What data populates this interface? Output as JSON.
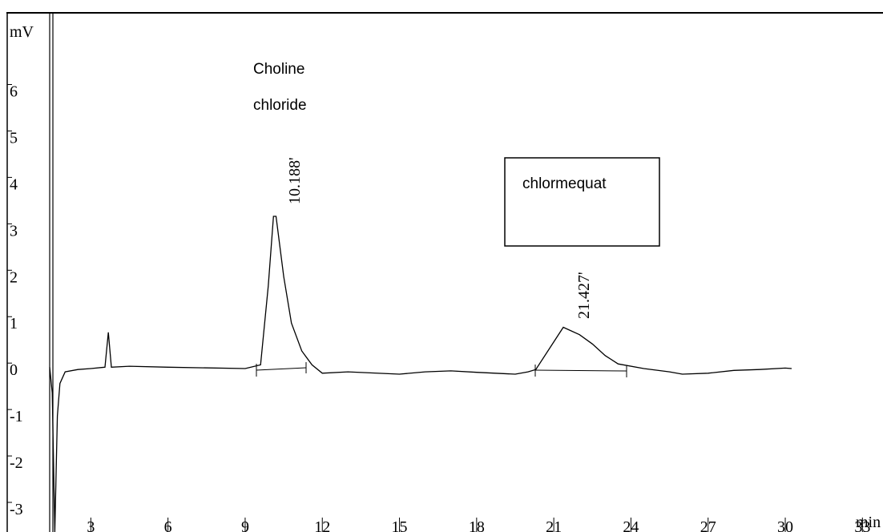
{
  "chart_data": {
    "type": "line",
    "y_label": "mV",
    "x_label": "min",
    "xlim": [
      1.4,
      33.8
    ],
    "ylim": [
      -3.5,
      7.7
    ],
    "xticks": [
      3,
      6,
      9,
      12,
      15,
      18,
      21,
      24,
      27,
      30,
      33
    ],
    "yticks": [
      6,
      5,
      4,
      3,
      2,
      1,
      0,
      -1,
      -2,
      -3
    ],
    "x": [
      1.4,
      1.5,
      1.6,
      1.7,
      1.8,
      2.0,
      2.5,
      3.0,
      3.55,
      3.68,
      3.8,
      4.5,
      6,
      9,
      9.6,
      9.9,
      10.1,
      10.2,
      10.5,
      10.8,
      11.2,
      11.6,
      12,
      13,
      15,
      16,
      17,
      18,
      19.5,
      20,
      20.3,
      21.37,
      22,
      22.5,
      23,
      23.5,
      24.5,
      25.5,
      26,
      27,
      28,
      29,
      30,
      30.25
    ],
    "series": [
      {
        "color": "#000000",
        "values": [
          0.05,
          -0.5,
          -3.5,
          -1.0,
          -0.3,
          -0.05,
          0.0,
          0.02,
          0.05,
          0.8,
          0.05,
          0.07,
          0.05,
          0.02,
          0.1,
          1.8,
          3.3,
          3.3,
          2.0,
          1.0,
          0.4,
          0.1,
          -0.08,
          -0.05,
          -0.1,
          -0.05,
          -0.03,
          -0.06,
          -0.1,
          -0.05,
          0.0,
          0.91,
          0.75,
          0.55,
          0.3,
          0.12,
          0.02,
          -0.05,
          -0.1,
          -0.08,
          -0.02,
          0.0,
          0.03,
          0.02
        ]
      }
    ],
    "annotations": [
      "Choline",
      "chloride",
      "chlormequat"
    ],
    "retention_times": [
      {
        "value": 10.188,
        "label": "10.188'"
      },
      {
        "value": 21.427,
        "label": "21.427'"
      }
    ]
  }
}
